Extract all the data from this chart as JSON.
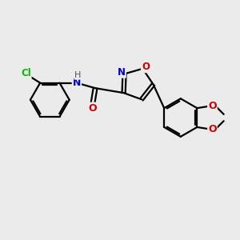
{
  "bg_color": "#ebebeb",
  "bond_color": "#000000",
  "bond_width": 1.6,
  "atom_colors": {
    "N": "#0000cc",
    "O": "#cc0000",
    "Cl": "#00bb00",
    "H": "#555555",
    "C": "#000000"
  },
  "font_size": 9
}
